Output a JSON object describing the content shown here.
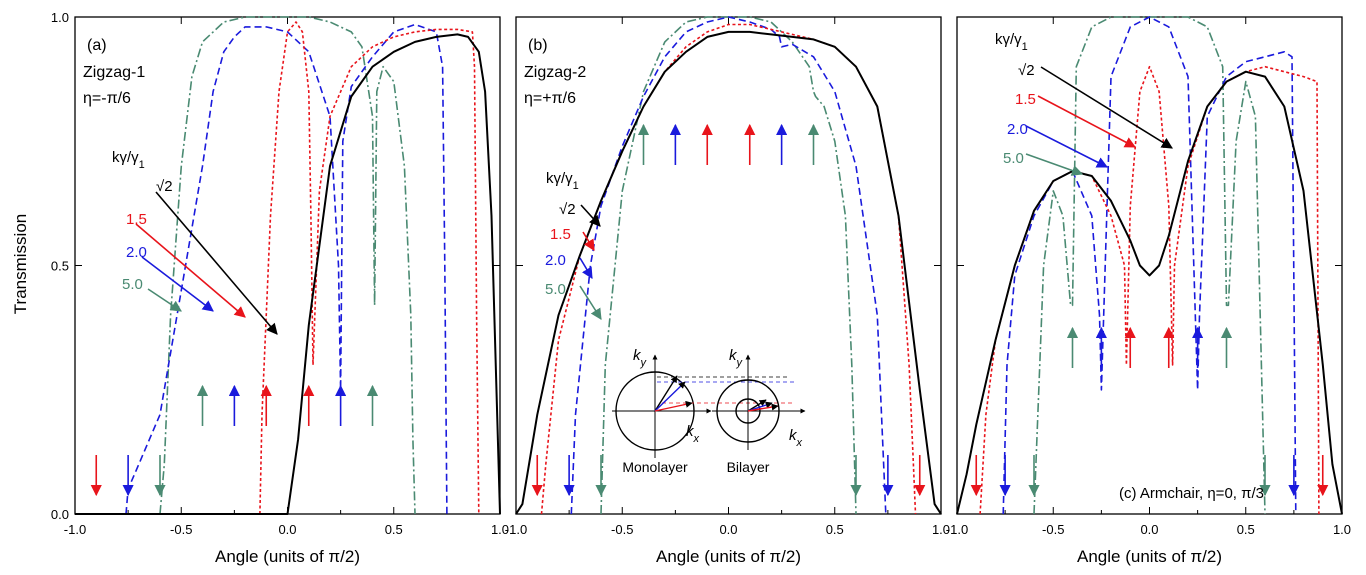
{
  "figure": {
    "ylabel": "Transmission",
    "colors": {
      "black": "#000000",
      "red": "#e8141b",
      "blue": "#1a1adc",
      "green": "#4a8a72"
    },
    "ticks_x": [
      "-1.0",
      "-0.5",
      "0.0",
      "0.5",
      "1.0"
    ],
    "ticks_y": [
      "0.0",
      "0.5",
      "1.0"
    ],
    "legend_header": "kγ/γ1",
    "legend_labels": [
      "√2",
      "1.5",
      "2.0",
      "5.0"
    ],
    "inset": {
      "mono_label": "Monolayer",
      "bi_label": "Bilayer",
      "ky": "ky",
      "kx": "kx"
    }
  },
  "chart_data": [
    {
      "type": "line",
      "panel_label": "(a)",
      "subtitle": "Zigzag-1",
      "eta": "η=-π/6",
      "xlabel": "Angle (units of π/2)",
      "ylabel": "Transmission",
      "xlim": [
        -1,
        1
      ],
      "ylim": [
        0,
        1
      ],
      "series": [
        {
          "name": "√2",
          "color": "black",
          "style": "solid",
          "x": [
            -1,
            0,
            0.05,
            0.1,
            0.2,
            0.3,
            0.4,
            0.5,
            0.6,
            0.7,
            0.8,
            0.85,
            0.9,
            0.93,
            0.96,
            1.0
          ],
          "y": [
            0,
            0,
            0.15,
            0.38,
            0.7,
            0.84,
            0.9,
            0.93,
            0.95,
            0.96,
            0.965,
            0.96,
            0.93,
            0.85,
            0.6,
            0
          ]
        },
        {
          "name": "1.5",
          "color": "red",
          "style": "dotted",
          "x": [
            -0.13,
            -0.12,
            -0.08,
            -0.04,
            0,
            0.04,
            0.07,
            0.1,
            0.11,
            0.12,
            0.15,
            0.2,
            0.3,
            0.4,
            0.5,
            0.6,
            0.7,
            0.8,
            0.87,
            0.88,
            0.89,
            0.9
          ],
          "y": [
            0,
            0.2,
            0.6,
            0.85,
            0.97,
            0.99,
            0.97,
            0.85,
            0.6,
            0.3,
            0.65,
            0.8,
            0.9,
            0.94,
            0.96,
            0.97,
            0.975,
            0.975,
            0.97,
            0.9,
            0.4,
            0
          ]
        },
        {
          "name": "2.0",
          "color": "blue",
          "style": "dashed",
          "x": [
            -0.76,
            -0.75,
            -0.7,
            -0.6,
            -0.5,
            -0.4,
            -0.35,
            -0.3,
            -0.25,
            -0.2,
            -0.1,
            0,
            0.1,
            0.2,
            0.24,
            0.25,
            0.26,
            0.3,
            0.4,
            0.5,
            0.6,
            0.7,
            0.73,
            0.74,
            0.75
          ],
          "y": [
            0,
            0.05,
            0.1,
            0.2,
            0.45,
            0.7,
            0.85,
            0.93,
            0.96,
            0.98,
            0.98,
            0.97,
            0.93,
            0.8,
            0.5,
            0.25,
            0.75,
            0.86,
            0.92,
            0.97,
            0.985,
            0.97,
            0.9,
            0.5,
            0
          ]
        },
        {
          "name": "5.0",
          "color": "green",
          "style": "dashdot",
          "x": [
            -0.6,
            -0.58,
            -0.55,
            -0.5,
            -0.45,
            -0.4,
            -0.3,
            -0.2,
            -0.1,
            0,
            0.1,
            0.2,
            0.3,
            0.35,
            0.4,
            0.41,
            0.42,
            0.45,
            0.5,
            0.55,
            0.58,
            0.59,
            0.6
          ],
          "y": [
            0,
            0.1,
            0.4,
            0.7,
            0.88,
            0.95,
            0.99,
            1,
            1,
            1,
            1,
            0.99,
            0.97,
            0.94,
            0.8,
            0.42,
            0.85,
            0.9,
            0.87,
            0.7,
            0.4,
            0.15,
            0
          ]
        }
      ],
      "arrows": {
        "down": [
          -0.9,
          -0.75,
          -0.6
        ],
        "up": [
          -0.4,
          -0.25,
          -0.1,
          0.1,
          0.25,
          0.4
        ]
      }
    },
    {
      "type": "line",
      "panel_label": "(b)",
      "subtitle": "Zigzag-2",
      "eta": "η=+π/6",
      "xlabel": "Angle (units of π/2)",
      "xlim": [
        -1,
        1
      ],
      "ylim": [
        0,
        1
      ],
      "series": [
        {
          "name": "√2",
          "color": "black",
          "style": "solid",
          "x": [
            -1,
            -0.97,
            -0.9,
            -0.8,
            -0.7,
            -0.6,
            -0.5,
            -0.4,
            -0.3,
            -0.2,
            -0.1,
            0,
            0.1,
            0.2,
            0.3,
            0.4,
            0.5,
            0.6,
            0.7,
            0.8,
            0.9,
            0.97,
            1.0
          ],
          "y": [
            0,
            0.02,
            0.2,
            0.4,
            0.52,
            0.63,
            0.73,
            0.82,
            0.89,
            0.93,
            0.96,
            0.97,
            0.97,
            0.965,
            0.96,
            0.955,
            0.94,
            0.9,
            0.82,
            0.6,
            0.25,
            0.02,
            0
          ]
        },
        {
          "name": "1.5",
          "color": "red",
          "style": "dotted",
          "x": [
            -0.88,
            -0.86,
            -0.8,
            -0.7,
            -0.6,
            -0.5,
            -0.4,
            -0.3,
            -0.2,
            -0.1,
            0,
            0.1,
            0.2,
            0.3,
            0.4,
            0.5,
            0.6,
            0.7,
            0.8,
            0.85,
            0.87,
            0.88
          ],
          "y": [
            0,
            0.1,
            0.35,
            0.52,
            0.63,
            0.73,
            0.82,
            0.89,
            0.94,
            0.97,
            0.985,
            0.985,
            0.975,
            0.965,
            0.955,
            0.94,
            0.9,
            0.82,
            0.6,
            0.3,
            0.1,
            0
          ]
        },
        {
          "name": "2.0",
          "color": "blue",
          "style": "dashed",
          "x": [
            -0.74,
            -0.72,
            -0.65,
            -0.6,
            -0.5,
            -0.4,
            -0.3,
            -0.2,
            -0.1,
            0,
            0.1,
            0.2,
            0.24,
            0.25,
            0.3,
            0.4,
            0.5,
            0.6,
            0.7,
            0.72,
            0.74
          ],
          "y": [
            0,
            0.2,
            0.5,
            0.62,
            0.74,
            0.84,
            0.92,
            0.97,
            0.99,
            1,
            0.99,
            0.975,
            0.96,
            0.94,
            0.945,
            0.92,
            0.85,
            0.7,
            0.4,
            0.2,
            0
          ]
        },
        {
          "name": "5.0",
          "color": "green",
          "style": "dashdot",
          "x": [
            -0.6,
            -0.58,
            -0.5,
            -0.4,
            -0.3,
            -0.2,
            -0.1,
            0,
            0.1,
            0.2,
            0.3,
            0.38,
            0.4,
            0.41,
            0.45,
            0.5,
            0.55,
            0.58,
            0.6
          ],
          "y": [
            0,
            0.3,
            0.65,
            0.85,
            0.95,
            0.99,
            1,
            1,
            1,
            0.99,
            0.95,
            0.9,
            0.85,
            0.84,
            0.82,
            0.75,
            0.6,
            0.3,
            0
          ]
        }
      ],
      "arrows": {
        "down": [
          -0.9,
          -0.75,
          -0.6,
          0.6,
          0.75,
          0.9
        ],
        "up": [
          -0.4,
          -0.25,
          -0.1,
          0.1,
          0.25,
          0.4
        ]
      }
    },
    {
      "type": "line",
      "panel_label": "(c) Armchair, η=0, π/3",
      "xlabel": "Angle (units of π/2)",
      "xlim": [
        -1,
        1
      ],
      "ylim": [
        0,
        1
      ],
      "series": [
        {
          "name": "√2",
          "color": "black",
          "style": "solid",
          "x": [
            -1,
            -0.95,
            -0.9,
            -0.8,
            -0.7,
            -0.6,
            -0.5,
            -0.4,
            -0.3,
            -0.2,
            -0.1,
            -0.05,
            0,
            0.05,
            0.1,
            0.2,
            0.3,
            0.4,
            0.5,
            0.6,
            0.7,
            0.8,
            0.9,
            0.95,
            1.0
          ],
          "y": [
            0,
            0.08,
            0.18,
            0.35,
            0.5,
            0.61,
            0.67,
            0.69,
            0.68,
            0.63,
            0.55,
            0.5,
            0.48,
            0.5,
            0.56,
            0.71,
            0.82,
            0.87,
            0.89,
            0.88,
            0.82,
            0.65,
            0.3,
            0.1,
            0
          ]
        },
        {
          "name": "1.5",
          "color": "red",
          "style": "dotted",
          "x": [
            -0.88,
            -0.85,
            -0.8,
            -0.7,
            -0.6,
            -0.5,
            -0.4,
            -0.3,
            -0.2,
            -0.13,
            -0.12,
            -0.1,
            -0.05,
            0,
            0.05,
            0.1,
            0.12,
            0.13,
            0.2,
            0.3,
            0.4,
            0.5,
            0.6,
            0.7,
            0.8,
            0.87,
            0.88
          ],
          "y": [
            0,
            0.2,
            0.35,
            0.5,
            0.61,
            0.67,
            0.69,
            0.68,
            0.6,
            0.5,
            0.3,
            0.62,
            0.85,
            0.9,
            0.85,
            0.62,
            0.3,
            0.5,
            0.7,
            0.82,
            0.87,
            0.89,
            0.9,
            0.89,
            0.88,
            0.87,
            0
          ]
        },
        {
          "name": "2.0",
          "color": "blue",
          "style": "dashed",
          "x": [
            -0.76,
            -0.74,
            -0.7,
            -0.6,
            -0.5,
            -0.4,
            -0.3,
            -0.26,
            -0.25,
            -0.2,
            -0.1,
            0,
            0.1,
            0.2,
            0.25,
            0.26,
            0.3,
            0.4,
            0.5,
            0.6,
            0.7,
            0.74,
            0.76
          ],
          "y": [
            0,
            0.3,
            0.48,
            0.6,
            0.67,
            0.69,
            0.6,
            0.4,
            0.25,
            0.88,
            0.98,
            1,
            0.98,
            0.88,
            0.25,
            0.4,
            0.8,
            0.88,
            0.91,
            0.92,
            0.93,
            0.92,
            0
          ]
        },
        {
          "name": "5.0",
          "color": "green",
          "style": "dashdot",
          "x": [
            -0.6,
            -0.55,
            -0.5,
            -0.45,
            -0.41,
            -0.4,
            -0.38,
            -0.3,
            -0.2,
            -0.1,
            0,
            0.1,
            0.2,
            0.3,
            0.38,
            0.4,
            0.41,
            0.45,
            0.5,
            0.55,
            0.6
          ],
          "y": [
            0,
            0.5,
            0.65,
            0.6,
            0.42,
            0.42,
            0.9,
            0.98,
            1,
            1,
            1,
            1,
            1,
            0.98,
            0.9,
            0.42,
            0.42,
            0.75,
            0.87,
            0.8,
            0
          ]
        }
      ],
      "arrows": {
        "down": [
          -0.9,
          -0.75,
          -0.6,
          0.6,
          0.75,
          0.9
        ],
        "up": [
          -0.4,
          -0.25,
          -0.1,
          0.1,
          0.25,
          0.4
        ]
      }
    }
  ]
}
